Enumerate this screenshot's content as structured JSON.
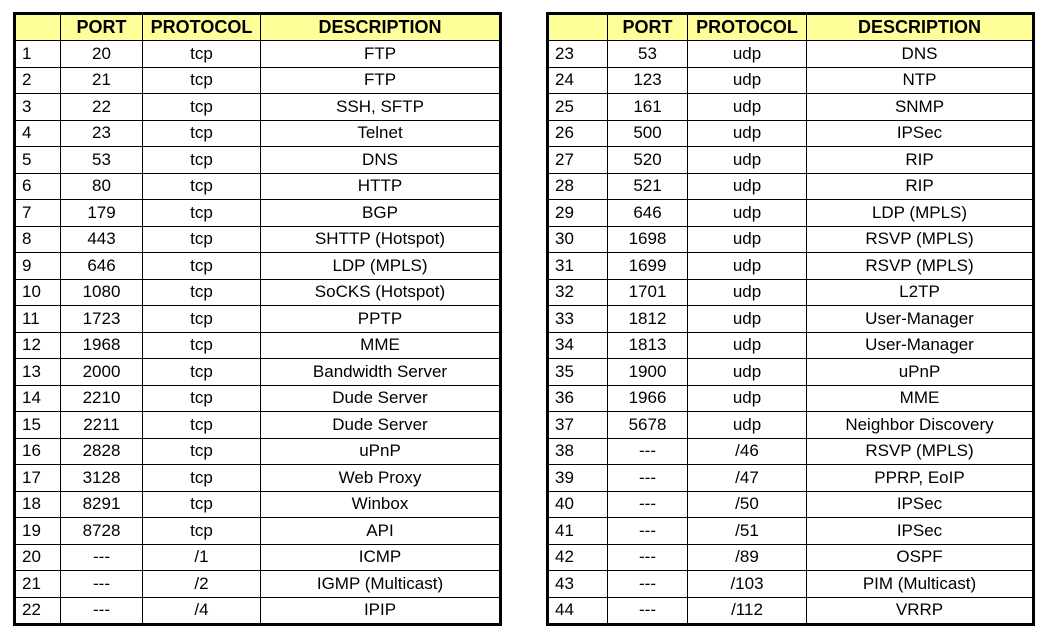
{
  "headers": [
    "",
    "PORT",
    "PROTOCOL",
    "DESCRIPTION"
  ],
  "colors": {
    "header_bg": "#ffff99",
    "border": "#000000"
  },
  "left_table": [
    [
      "1",
      "20",
      "tcp",
      "FTP"
    ],
    [
      "2",
      "21",
      "tcp",
      "FTP"
    ],
    [
      "3",
      "22",
      "tcp",
      "SSH, SFTP"
    ],
    [
      "4",
      "23",
      "tcp",
      "Telnet"
    ],
    [
      "5",
      "53",
      "tcp",
      "DNS"
    ],
    [
      "6",
      "80",
      "tcp",
      "HTTP"
    ],
    [
      "7",
      "179",
      "tcp",
      "BGP"
    ],
    [
      "8",
      "443",
      "tcp",
      "SHTTP (Hotspot)"
    ],
    [
      "9",
      "646",
      "tcp",
      "LDP (MPLS)"
    ],
    [
      "10",
      "1080",
      "tcp",
      "SoCKS (Hotspot)"
    ],
    [
      "11",
      "1723",
      "tcp",
      "PPTP"
    ],
    [
      "12",
      "1968",
      "tcp",
      "MME"
    ],
    [
      "13",
      "2000",
      "tcp",
      "Bandwidth Server"
    ],
    [
      "14",
      "2210",
      "tcp",
      "Dude Server"
    ],
    [
      "15",
      "2211",
      "tcp",
      "Dude Server"
    ],
    [
      "16",
      "2828",
      "tcp",
      "uPnP"
    ],
    [
      "17",
      "3128",
      "tcp",
      "Web Proxy"
    ],
    [
      "18",
      "8291",
      "tcp",
      "Winbox"
    ],
    [
      "19",
      "8728",
      "tcp",
      "API"
    ],
    [
      "20",
      "---",
      "/1",
      "ICMP"
    ],
    [
      "21",
      "---",
      "/2",
      "IGMP (Multicast)"
    ],
    [
      "22",
      "---",
      "/4",
      "IPIP"
    ]
  ],
  "right_table": [
    [
      "23",
      "53",
      "udp",
      "DNS"
    ],
    [
      "24",
      "123",
      "udp",
      "NTP"
    ],
    [
      "25",
      "161",
      "udp",
      "SNMP"
    ],
    [
      "26",
      "500",
      "udp",
      "IPSec"
    ],
    [
      "27",
      "520",
      "udp",
      "RIP"
    ],
    [
      "28",
      "521",
      "udp",
      "RIP"
    ],
    [
      "29",
      "646",
      "udp",
      "LDP (MPLS)"
    ],
    [
      "30",
      "1698",
      "udp",
      "RSVP (MPLS)"
    ],
    [
      "31",
      "1699",
      "udp",
      "RSVP (MPLS)"
    ],
    [
      "32",
      "1701",
      "udp",
      "L2TP"
    ],
    [
      "33",
      "1812",
      "udp",
      "User-Manager"
    ],
    [
      "34",
      "1813",
      "udp",
      "User-Manager"
    ],
    [
      "35",
      "1900",
      "udp",
      "uPnP"
    ],
    [
      "36",
      "1966",
      "udp",
      "MME"
    ],
    [
      "37",
      "5678",
      "udp",
      "Neighbor Discovery"
    ],
    [
      "38",
      "---",
      "/46",
      "RSVP (MPLS)"
    ],
    [
      "39",
      "---",
      "/47",
      "PPRP, EoIP"
    ],
    [
      "40",
      "---",
      "/50",
      "IPSec"
    ],
    [
      "41",
      "---",
      "/51",
      "IPSec"
    ],
    [
      "42",
      "---",
      "/89",
      "OSPF"
    ],
    [
      "43",
      "---",
      "/103",
      "PIM (Multicast)"
    ],
    [
      "44",
      "---",
      "/112",
      "VRRP"
    ]
  ]
}
